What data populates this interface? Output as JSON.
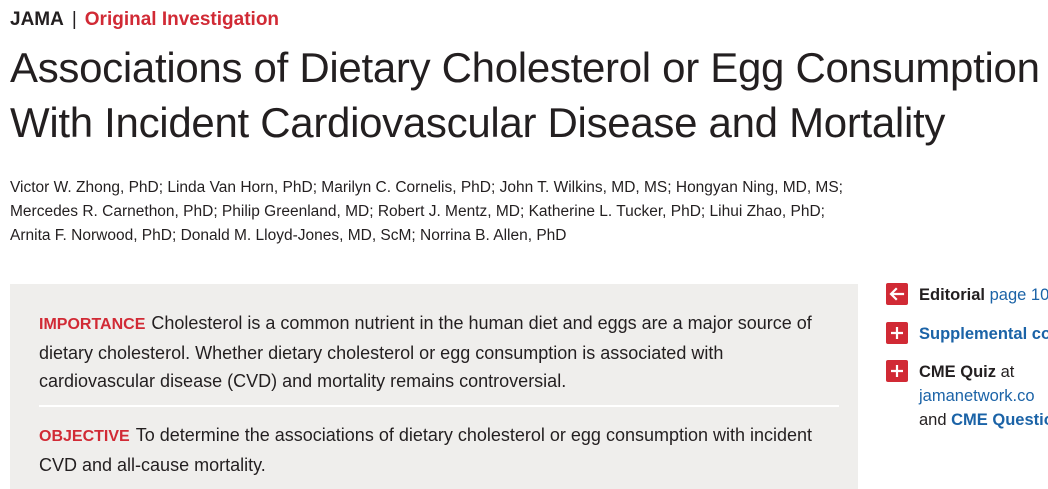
{
  "header": {
    "journal": "JAMA",
    "separator": "|",
    "section": "Original Investigation"
  },
  "article": {
    "title_lines": [
      "Associations of Dietary Cholesterol or Egg Consumption",
      "With Incident Cardiovascular Disease and Mortality"
    ],
    "author_lines": [
      "Victor W. Zhong, PhD; Linda Van Horn, PhD; Marilyn C. Cornelis, PhD; John T. Wilkins, MD, MS; Hongyan Ning, MD, MS;",
      "Mercedes R. Carnethon, PhD; Philip Greenland, MD; Robert J. Mentz, MD; Katherine L. Tucker, PhD; Lihui Zhao, PhD;",
      "Arnita F. Norwood, PhD; Donald M. Lloyd-Jones, MD, ScM; Norrina B. Allen, PhD"
    ]
  },
  "abstract": {
    "importance": {
      "heading": "IMPORTANCE",
      "text": "Cholesterol is a common nutrient in the human diet and eggs are a major source of dietary cholesterol. Whether dietary cholesterol or egg consumption is associated with cardiovascular disease (CVD) and mortality remains controversial."
    },
    "objective": {
      "heading": "OBJECTIVE",
      "text": "To determine the associations of dietary cholesterol or egg consumption with incident CVD and all-cause mortality."
    }
  },
  "sidebar": {
    "editorial": {
      "label": "Editorial",
      "link": "page 10."
    },
    "supplemental": {
      "link": "Supplemental co"
    },
    "cme": {
      "label": "CME Quiz",
      "at": "at",
      "site": "jamanetwork.co",
      "and": "and",
      "questions": "CME Questio"
    }
  },
  "colors": {
    "accent": "#d12a35",
    "link": "#1b63a7",
    "abstract_bg": "#efeeec"
  }
}
